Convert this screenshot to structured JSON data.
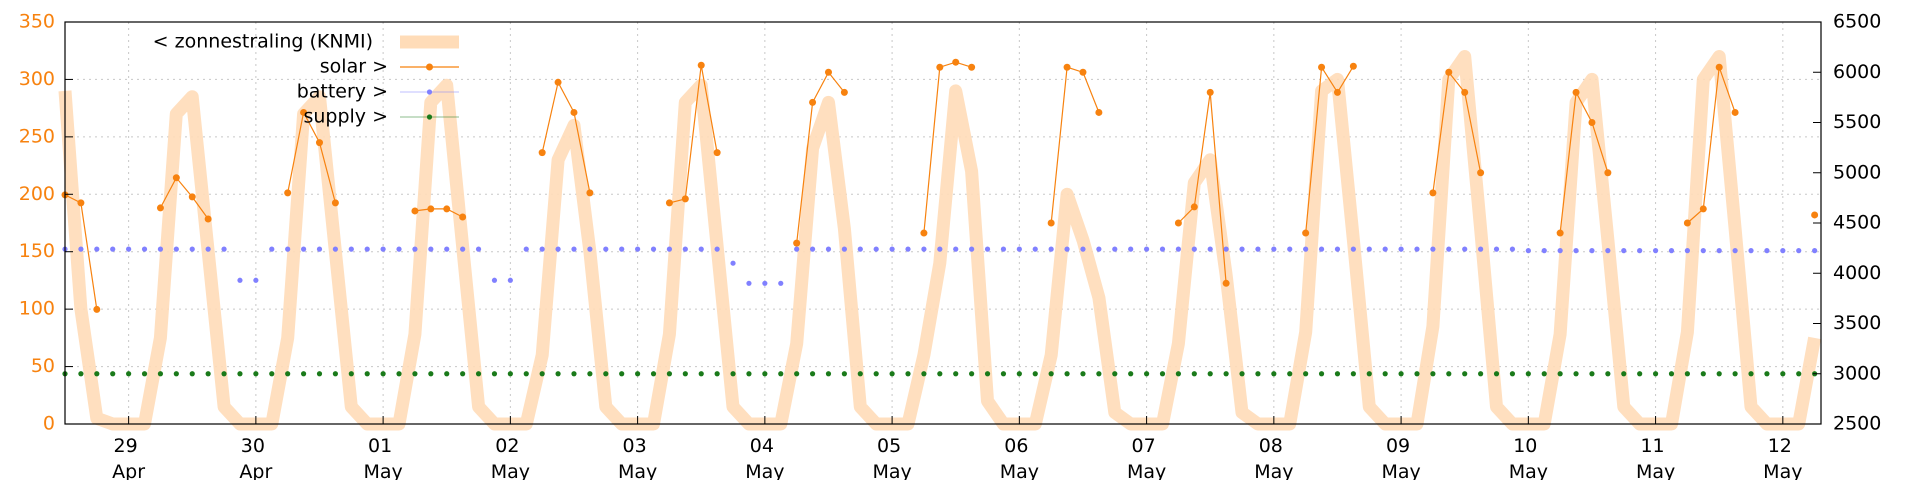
{
  "chart_data": {
    "type": "line",
    "x": [
      0.5,
      0.625,
      0.75,
      0.875,
      1,
      1.125,
      1.25,
      1.375,
      1.5,
      1.625,
      1.75,
      1.875,
      2,
      2.125,
      2.25,
      2.375,
      2.5,
      2.625,
      2.75,
      2.875,
      3,
      3.125,
      3.25,
      3.375,
      3.5,
      3.625,
      3.75,
      3.875,
      4,
      4.125,
      4.25,
      4.375,
      4.5,
      4.625,
      4.75,
      4.875,
      5,
      5.125,
      5.25,
      5.375,
      5.5,
      5.625,
      5.75,
      5.875,
      6,
      6.125,
      6.25,
      6.375,
      6.5,
      6.625,
      6.75,
      6.875,
      7,
      7.125,
      7.25,
      7.375,
      7.5,
      7.625,
      7.75,
      7.875,
      8,
      8.125,
      8.25,
      8.375,
      8.5,
      8.625,
      8.75,
      8.875,
      9,
      9.125,
      9.25,
      9.375,
      9.5,
      9.625,
      9.75,
      9.875,
      10,
      10.125,
      10.25,
      10.375,
      10.5,
      10.625,
      10.75,
      10.875,
      11,
      11.125,
      11.25,
      11.375,
      11.5,
      11.625,
      11.75,
      11.875,
      12,
      12.125,
      12.25,
      12.375,
      12.5,
      12.625,
      12.75,
      12.875,
      13,
      13.125,
      13.25,
      13.375,
      13.5,
      13.625,
      13.75,
      13.875,
      14,
      14.125,
      14.25
    ],
    "series": [
      {
        "name": "< zonnestraling (KNMI)",
        "color": "#ffdcb8",
        "style": "lines",
        "axis": "y",
        "values": [
          290,
          100,
          5,
          0,
          0,
          0,
          75,
          270,
          285,
          150,
          15,
          0,
          0,
          0,
          75,
          270,
          285,
          150,
          15,
          0,
          0,
          0,
          78,
          280,
          295,
          155,
          15,
          0,
          0,
          0,
          60,
          230,
          260,
          150,
          15,
          0,
          0,
          0,
          78,
          280,
          295,
          155,
          15,
          0,
          0,
          0,
          70,
          240,
          280,
          170,
          15,
          0,
          0,
          0,
          60,
          140,
          290,
          220,
          20,
          0,
          0,
          0,
          60,
          200,
          160,
          110,
          10,
          0,
          0,
          0,
          70,
          210,
          230,
          130,
          10,
          0,
          0,
          0,
          80,
          290,
          300,
          160,
          15,
          0,
          0,
          0,
          85,
          300,
          320,
          170,
          15,
          0,
          0,
          0,
          78,
          280,
          300,
          160,
          15,
          0,
          0,
          0,
          80,
          300,
          320,
          170,
          15,
          0,
          0,
          0,
          75
        ]
      },
      {
        "name": "solar >",
        "color": "#f7820f",
        "style": "linespoints",
        "axis": "y2",
        "values": [
          4780,
          4700,
          3640,
          null,
          null,
          null,
          4650,
          4950,
          4760,
          4540,
          null,
          null,
          null,
          null,
          4800,
          5600,
          5300,
          4700,
          null,
          null,
          null,
          null,
          4620,
          4640,
          4640,
          4560,
          null,
          null,
          null,
          null,
          5200,
          5900,
          5600,
          4800,
          null,
          null,
          null,
          null,
          4700,
          4740,
          6070,
          5200,
          null,
          null,
          null,
          null,
          4300,
          5700,
          6000,
          5800,
          null,
          null,
          null,
          null,
          4400,
          6050,
          6100,
          6050,
          null,
          null,
          null,
          null,
          4500,
          6050,
          6000,
          5600,
          null,
          null,
          null,
          null,
          4500,
          4660,
          5800,
          3900,
          null,
          null,
          null,
          null,
          4400,
          6050,
          5800,
          6060,
          null,
          null,
          null,
          null,
          4800,
          6000,
          5800,
          5000,
          null,
          null,
          null,
          null,
          4400,
          5800,
          5500,
          5000,
          null,
          null,
          null,
          null,
          4500,
          4640,
          6050,
          5600,
          null,
          null,
          null,
          null,
          4580
        ]
      },
      {
        "name": "battery >",
        "color": "#8080ff",
        "style": "points",
        "axis": "y2",
        "values": [
          4240,
          4240,
          4240,
          4240,
          4240,
          4240,
          4240,
          4240,
          4240,
          4240,
          4240,
          3930,
          3930,
          4240,
          4240,
          4240,
          4240,
          4240,
          4240,
          4240,
          4240,
          4240,
          4240,
          4240,
          4240,
          4240,
          4240,
          3930,
          3930,
          4240,
          4240,
          4240,
          4240,
          4240,
          4240,
          4240,
          4240,
          4240,
          4240,
          4240,
          4240,
          4240,
          4100,
          3900,
          3900,
          3900,
          4240,
          4240,
          4240,
          4240,
          4240,
          4240,
          4240,
          4240,
          4240,
          4240,
          4240,
          4240,
          4240,
          4240,
          4240,
          4240,
          4240,
          4240,
          4240,
          4240,
          4240,
          4240,
          4240,
          4240,
          4240,
          4240,
          4240,
          4240,
          4240,
          4240,
          4240,
          4240,
          4240,
          4240,
          4240,
          4240,
          4240,
          4240,
          4240,
          4240,
          4240,
          4240,
          4240,
          4240,
          4240,
          4240,
          4225,
          4225,
          4225,
          4225,
          4225,
          4225,
          4225,
          4225,
          4225,
          4225,
          4225,
          4225,
          4225,
          4225,
          4225,
          4225,
          4225,
          4225,
          4225
        ]
      },
      {
        "name": "supply >",
        "color": "#1a7a1a",
        "style": "points",
        "axis": "y2",
        "values": [
          3000,
          3000,
          3000,
          3000,
          3000,
          3000,
          3000,
          3000,
          3000,
          3000,
          3000,
          3000,
          3000,
          3000,
          3000,
          3000,
          3000,
          3000,
          3000,
          3000,
          3000,
          3000,
          3000,
          3000,
          3000,
          3000,
          3000,
          3000,
          3000,
          3000,
          3000,
          3000,
          3000,
          3000,
          3000,
          3000,
          3000,
          3000,
          3000,
          3000,
          3000,
          3000,
          3000,
          3000,
          3000,
          3000,
          3000,
          3000,
          3000,
          3000,
          3000,
          3000,
          3000,
          3000,
          3000,
          3000,
          3000,
          3000,
          3000,
          3000,
          3000,
          3000,
          3000,
          3000,
          3000,
          3000,
          3000,
          3000,
          3000,
          3000,
          3000,
          3000,
          3000,
          3000,
          3000,
          3000,
          3000,
          3000,
          3000,
          3000,
          3000,
          3000,
          3000,
          3000,
          3000,
          3000,
          3000,
          3000,
          3000,
          3000,
          3000,
          3000,
          3000,
          3000,
          3000,
          3000,
          3000,
          3000,
          3000,
          3000,
          3000,
          3000,
          3000,
          3000,
          3000,
          3000,
          3000,
          3000,
          3000,
          3000,
          3000
        ]
      }
    ],
    "xlim": [
      0.5,
      14.3
    ],
    "xticks": [
      {
        "value": 1,
        "label": "29 Apr"
      },
      {
        "value": 2,
        "label": "30 Apr"
      },
      {
        "value": 3,
        "label": "01 May"
      },
      {
        "value": 4,
        "label": "02 May"
      },
      {
        "value": 5,
        "label": "03 May"
      },
      {
        "value": 6,
        "label": "04 May"
      },
      {
        "value": 7,
        "label": "05 May"
      },
      {
        "value": 8,
        "label": "06 May"
      },
      {
        "value": 9,
        "label": "07 May"
      },
      {
        "value": 10,
        "label": "08 May"
      },
      {
        "value": 11,
        "label": "09 May"
      },
      {
        "value": 12,
        "label": "10 May"
      },
      {
        "value": 13,
        "label": "11 May"
      },
      {
        "value": 14,
        "label": "12 May"
      }
    ],
    "ylim": [
      0,
      350
    ],
    "yticks": [
      0,
      50,
      100,
      150,
      200,
      250,
      300,
      350
    ],
    "y2lim": [
      2500,
      6500
    ],
    "y2ticks": [
      2500,
      3000,
      3500,
      4000,
      4500,
      5000,
      5500,
      6000,
      6500
    ],
    "ytick_color": "#f7820f",
    "grid": true,
    "legend": "top-left"
  }
}
